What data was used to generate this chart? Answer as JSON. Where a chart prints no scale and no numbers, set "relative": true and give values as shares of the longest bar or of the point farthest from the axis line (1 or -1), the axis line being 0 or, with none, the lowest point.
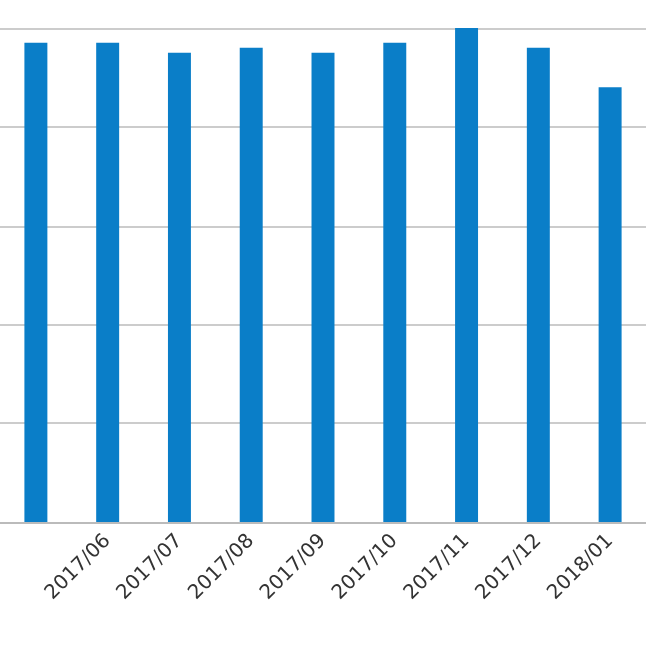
{
  "chart_data": {
    "type": "bar",
    "relative": true,
    "grid": "y",
    "color": "#0a7ec8",
    "categories": [
      null,
      "2017/06",
      "2017/07",
      "2017/08",
      "2017/09",
      "2017/10",
      "2017/11",
      "2017/12",
      "2018/01"
    ],
    "values": [
      0.97,
      0.97,
      0.95,
      0.96,
      0.95,
      0.97,
      1,
      0.96,
      0.88
    ]
  }
}
